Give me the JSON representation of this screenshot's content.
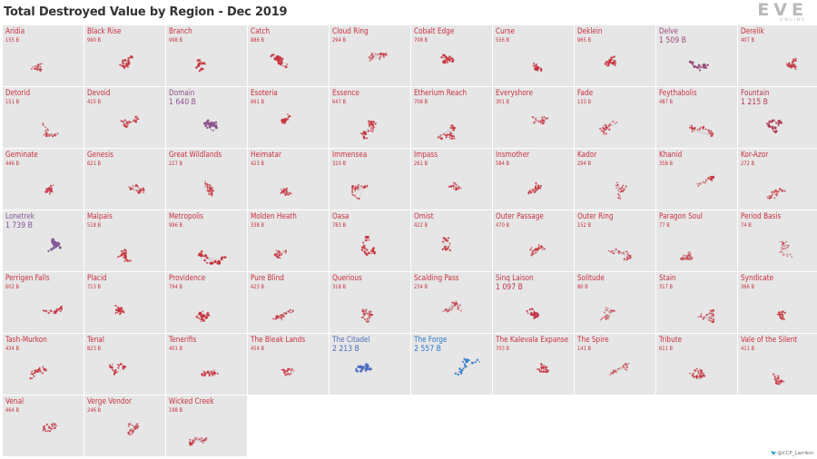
{
  "title": "Total Destroyed Value by Region - Dec 2019",
  "logo": {
    "text": "EVE",
    "subtext": "ONLINE"
  },
  "credit": "@CCP_Larrikin",
  "colors": {
    "low": "#c8303c",
    "mid": "#7c5aa0",
    "high": "#2a78d0",
    "cell_bg": "#e6e6e6"
  },
  "chart_data": {
    "type": "small-multiples",
    "title": "Total Destroyed Value by Region - Dec 2019",
    "columns": 10,
    "unit": "B",
    "regions": [
      {
        "name": "Aridia",
        "value": 155,
        "label": "155 B"
      },
      {
        "name": "Black Rise",
        "value": 990,
        "label": "990 B"
      },
      {
        "name": "Branch",
        "value": 998,
        "label": "998 B"
      },
      {
        "name": "Catch",
        "value": 886,
        "label": "886 B"
      },
      {
        "name": "Cloud Ring",
        "value": 294,
        "label": "294 B"
      },
      {
        "name": "Cobalt Edge",
        "value": 708,
        "label": "708 B"
      },
      {
        "name": "Curse",
        "value": 556,
        "label": "556 B"
      },
      {
        "name": "Deklein",
        "value": 965,
        "label": "965 B"
      },
      {
        "name": "Delve",
        "value": 1509,
        "label": "1 509 B"
      },
      {
        "name": "Derelik",
        "value": 407,
        "label": "407 B"
      },
      {
        "name": "Detorid",
        "value": 151,
        "label": "151 B"
      },
      {
        "name": "Devoid",
        "value": 415,
        "label": "415 B"
      },
      {
        "name": "Domain",
        "value": 1640,
        "label": "1 640 B"
      },
      {
        "name": "Esoteria",
        "value": 661,
        "label": "661 B"
      },
      {
        "name": "Essence",
        "value": 647,
        "label": "647 B"
      },
      {
        "name": "Etherium Reach",
        "value": 708,
        "label": "708 B"
      },
      {
        "name": "Everyshore",
        "value": 301,
        "label": "301 B"
      },
      {
        "name": "Fade",
        "value": 133,
        "label": "133 B"
      },
      {
        "name": "Feythabolis",
        "value": 487,
        "label": "487 B"
      },
      {
        "name": "Fountain",
        "value": 1215,
        "label": "1 215 B"
      },
      {
        "name": "Geminate",
        "value": 446,
        "label": "446 B"
      },
      {
        "name": "Genesis",
        "value": 621,
        "label": "621 B"
      },
      {
        "name": "Great Wildlands",
        "value": 227,
        "label": "227 B"
      },
      {
        "name": "Heimatar",
        "value": 423,
        "label": "423 B"
      },
      {
        "name": "Immensea",
        "value": 320,
        "label": "320 B"
      },
      {
        "name": "Impass",
        "value": 261,
        "label": "261 B"
      },
      {
        "name": "Insmother",
        "value": 584,
        "label": "584 B"
      },
      {
        "name": "Kador",
        "value": 294,
        "label": "294 B"
      },
      {
        "name": "Khanid",
        "value": 358,
        "label": "358 B"
      },
      {
        "name": "Kor-Azor",
        "value": 272,
        "label": "272 B"
      },
      {
        "name": "Lonetrek",
        "value": 1739,
        "label": "1 739 B"
      },
      {
        "name": "Malpais",
        "value": 518,
        "label": "518 B"
      },
      {
        "name": "Metropolis",
        "value": 996,
        "label": "996 B"
      },
      {
        "name": "Molden Heath",
        "value": 338,
        "label": "338 B"
      },
      {
        "name": "Oasa",
        "value": 783,
        "label": "783 B"
      },
      {
        "name": "Omist",
        "value": 422,
        "label": "422 B"
      },
      {
        "name": "Outer Passage",
        "value": 470,
        "label": "470 B"
      },
      {
        "name": "Outer Ring",
        "value": 152,
        "label": "152 B"
      },
      {
        "name": "Paragon Soul",
        "value": 77,
        "label": "77 B"
      },
      {
        "name": "Period Basis",
        "value": 74,
        "label": "74 B"
      },
      {
        "name": "Perrigen Falls",
        "value": 602,
        "label": "602 B"
      },
      {
        "name": "Placid",
        "value": 713,
        "label": "713 B"
      },
      {
        "name": "Providence",
        "value": 794,
        "label": "794 B"
      },
      {
        "name": "Pure Blind",
        "value": 423,
        "label": "423 B"
      },
      {
        "name": "Querious",
        "value": 318,
        "label": "318 B"
      },
      {
        "name": "Scalding Pass",
        "value": 234,
        "label": "234 B"
      },
      {
        "name": "Sinq Laison",
        "value": 1097,
        "label": "1 097 B"
      },
      {
        "name": "Solitude",
        "value": 80,
        "label": "80 B"
      },
      {
        "name": "Stain",
        "value": 317,
        "label": "317 B"
      },
      {
        "name": "Syndicate",
        "value": 366,
        "label": "366 B"
      },
      {
        "name": "Tash-Murkon",
        "value": 434,
        "label": "434 B"
      },
      {
        "name": "Tenal",
        "value": 823,
        "label": "823 B"
      },
      {
        "name": "Tenerifis",
        "value": 401,
        "label": "401 B"
      },
      {
        "name": "The Bleak Lands",
        "value": 454,
        "label": "454 B"
      },
      {
        "name": "The Citadel",
        "value": 2213,
        "label": "2 213 B"
      },
      {
        "name": "The Forge",
        "value": 2557,
        "label": "2 557 B"
      },
      {
        "name": "The Kalevala Expanse",
        "value": 703,
        "label": "703 B"
      },
      {
        "name": "The Spire",
        "value": 141,
        "label": "141 B"
      },
      {
        "name": "Tribute",
        "value": 611,
        "label": "611 B"
      },
      {
        "name": "Vale of the Silent",
        "value": 411,
        "label": "411 B"
      },
      {
        "name": "Venal",
        "value": 464,
        "label": "464 B"
      },
      {
        "name": "Verge Vendor",
        "value": 246,
        "label": "246 B"
      },
      {
        "name": "Wicked Creek",
        "value": 198,
        "label": "198 B"
      }
    ]
  }
}
